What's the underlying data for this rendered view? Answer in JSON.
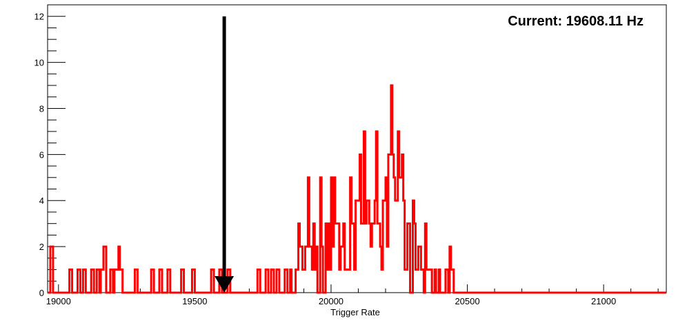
{
  "chart_data": {
    "type": "bar",
    "title": "",
    "xlabel": "Trigger Rate",
    "ylabel": "",
    "xlim": [
      18960,
      21230
    ],
    "ylim": [
      0,
      12.5
    ],
    "x_ticks": [
      19000,
      19500,
      20000,
      20500,
      21000
    ],
    "y_ticks": [
      0,
      2,
      4,
      6,
      8,
      10,
      12
    ],
    "grid": false,
    "legend": "none",
    "annotation": "Current: 19608.11 Hz",
    "marker_value": 19608.11,
    "line_color": "#ff0000",
    "arrow_color": "#000000",
    "bins": [
      [
        18970,
        2
      ],
      [
        18980,
        0
      ],
      [
        19040,
        1
      ],
      [
        19050,
        0
      ],
      [
        19070,
        1
      ],
      [
        19080,
        0
      ],
      [
        19090,
        1
      ],
      [
        19100,
        0
      ],
      [
        19120,
        1
      ],
      [
        19130,
        0
      ],
      [
        19140,
        1
      ],
      [
        19150,
        0
      ],
      [
        19155,
        1
      ],
      [
        19165,
        2
      ],
      [
        19175,
        0
      ],
      [
        19190,
        1
      ],
      [
        19200,
        0
      ],
      [
        19205,
        1
      ],
      [
        19215,
        1
      ],
      [
        19220,
        2
      ],
      [
        19225,
        1
      ],
      [
        19235,
        0
      ],
      [
        19280,
        1
      ],
      [
        19290,
        0
      ],
      [
        19340,
        1
      ],
      [
        19350,
        0
      ],
      [
        19370,
        1
      ],
      [
        19380,
        0
      ],
      [
        19400,
        1
      ],
      [
        19410,
        0
      ],
      [
        19450,
        1
      ],
      [
        19460,
        0
      ],
      [
        19490,
        1
      ],
      [
        19500,
        0
      ],
      [
        19560,
        1
      ],
      [
        19570,
        0
      ],
      [
        19590,
        1
      ],
      [
        19600,
        0
      ],
      [
        19620,
        1
      ],
      [
        19630,
        0
      ],
      [
        19730,
        1
      ],
      [
        19740,
        0
      ],
      [
        19760,
        1
      ],
      [
        19770,
        0
      ],
      [
        19780,
        1
      ],
      [
        19790,
        0
      ],
      [
        19800,
        1
      ],
      [
        19810,
        0
      ],
      [
        19830,
        1
      ],
      [
        19840,
        0
      ],
      [
        19850,
        1
      ],
      [
        19855,
        0
      ],
      [
        19870,
        1
      ],
      [
        19880,
        3
      ],
      [
        19885,
        2
      ],
      [
        19895,
        1
      ],
      [
        19905,
        2
      ],
      [
        19915,
        5
      ],
      [
        19920,
        2
      ],
      [
        19930,
        1
      ],
      [
        19935,
        3
      ],
      [
        19940,
        1
      ],
      [
        19945,
        2
      ],
      [
        19950,
        0
      ],
      [
        19960,
        5
      ],
      [
        19965,
        2
      ],
      [
        19970,
        0
      ],
      [
        19980,
        3
      ],
      [
        19985,
        1
      ],
      [
        19990,
        3
      ],
      [
        19995,
        1
      ],
      [
        20000,
        5
      ],
      [
        20005,
        2
      ],
      [
        20010,
        5
      ],
      [
        20015,
        3
      ],
      [
        20025,
        3
      ],
      [
        20030,
        1
      ],
      [
        20035,
        2
      ],
      [
        20045,
        3
      ],
      [
        20050,
        1
      ],
      [
        20060,
        1
      ],
      [
        20070,
        5
      ],
      [
        20075,
        3
      ],
      [
        20085,
        1
      ],
      [
        20090,
        4
      ],
      [
        20100,
        4
      ],
      [
        20105,
        6
      ],
      [
        20110,
        3
      ],
      [
        20120,
        7
      ],
      [
        20125,
        3
      ],
      [
        20130,
        4
      ],
      [
        20140,
        3
      ],
      [
        20145,
        2
      ],
      [
        20150,
        3
      ],
      [
        20160,
        4
      ],
      [
        20165,
        7
      ],
      [
        20170,
        3
      ],
      [
        20180,
        2
      ],
      [
        20185,
        1
      ],
      [
        20190,
        4
      ],
      [
        20200,
        5
      ],
      [
        20205,
        2
      ],
      [
        20210,
        6
      ],
      [
        20215,
        6
      ],
      [
        20220,
        9
      ],
      [
        20225,
        6
      ],
      [
        20230,
        5
      ],
      [
        20235,
        4
      ],
      [
        20245,
        7
      ],
      [
        20250,
        5
      ],
      [
        20260,
        6
      ],
      [
        20265,
        4
      ],
      [
        20270,
        1
      ],
      [
        20280,
        3
      ],
      [
        20290,
        0
      ],
      [
        20300,
        4
      ],
      [
        20305,
        3
      ],
      [
        20310,
        1
      ],
      [
        20320,
        2
      ],
      [
        20330,
        1
      ],
      [
        20340,
        0
      ],
      [
        20345,
        3
      ],
      [
        20350,
        1
      ],
      [
        20360,
        1
      ],
      [
        20370,
        0
      ],
      [
        20380,
        1
      ],
      [
        20385,
        0
      ],
      [
        20395,
        1
      ],
      [
        20400,
        0
      ],
      [
        20420,
        1
      ],
      [
        20430,
        0
      ],
      [
        20435,
        2
      ],
      [
        20440,
        1
      ],
      [
        20450,
        0
      ],
      [
        21230,
        0
      ]
    ]
  }
}
